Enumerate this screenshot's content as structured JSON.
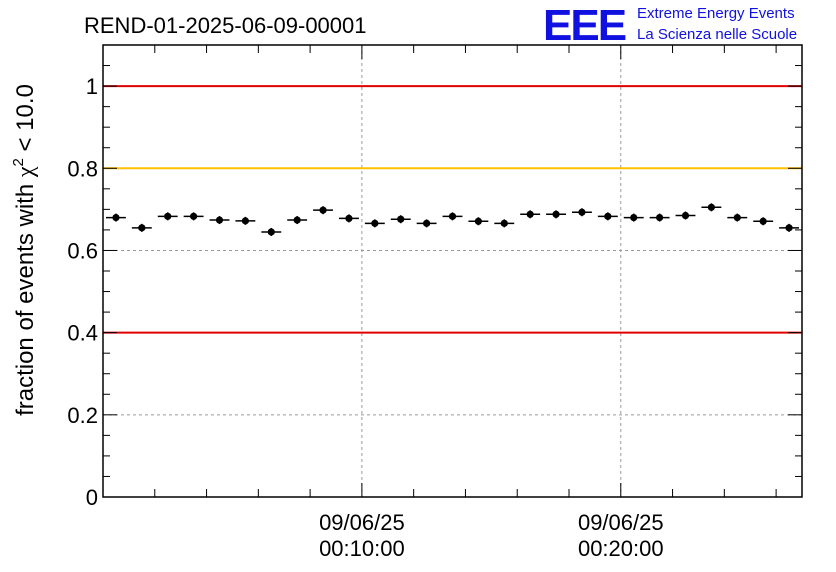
{
  "chart_data": {
    "type": "scatter",
    "title": "REND-01-2025-06-09-00001",
    "ylabel_prefix": "fraction of events with ",
    "ylabel_symbol": "χ",
    "ylabel_superscript": "2",
    "ylabel_suffix": " < 10.0",
    "xlim": [
      0,
      27
    ],
    "ylim": [
      0,
      1.1
    ],
    "grid": true,
    "y_ticks": [
      {
        "value": 0,
        "label": "0"
      },
      {
        "value": 0.2,
        "label": "0.2"
      },
      {
        "value": 0.4,
        "label": "0.4"
      },
      {
        "value": 0.6,
        "label": "0.6"
      },
      {
        "value": 0.8,
        "label": "0.8"
      },
      {
        "value": 1.0,
        "label": "1"
      }
    ],
    "x_ticks": [
      {
        "value": 10,
        "date": "09/06/25",
        "time": "00:10:00"
      },
      {
        "value": 20,
        "date": "09/06/25",
        "time": "00:20:00"
      }
    ],
    "reference_lines": [
      {
        "value": 1.0,
        "color": "#e00000"
      },
      {
        "value": 0.8,
        "color": "#ffc000"
      },
      {
        "value": 0.4,
        "color": "#e00000"
      }
    ],
    "x": [
      0.5,
      1.5,
      2.5,
      3.5,
      4.5,
      5.5,
      6.5,
      7.5,
      8.5,
      9.5,
      10.5,
      11.5,
      12.5,
      13.5,
      14.5,
      15.5,
      16.5,
      17.5,
      18.5,
      19.5,
      20.5,
      21.5,
      22.5,
      23.5,
      24.5,
      25.5,
      26.5
    ],
    "values": [
      0.68,
      0.655,
      0.683,
      0.683,
      0.674,
      0.672,
      0.645,
      0.674,
      0.698,
      0.678,
      0.666,
      0.676,
      0.666,
      0.683,
      0.671,
      0.666,
      0.688,
      0.688,
      0.693,
      0.683,
      0.68,
      0.68,
      0.685,
      0.705,
      0.68,
      0.671,
      0.655
    ],
    "colors": {
      "marker": "#000000",
      "grid": "#9a9a9a"
    }
  },
  "logo": {
    "mark": "EEE",
    "line1": "Extreme Energy Events",
    "line2": "La Scienza nelle Scuole"
  }
}
